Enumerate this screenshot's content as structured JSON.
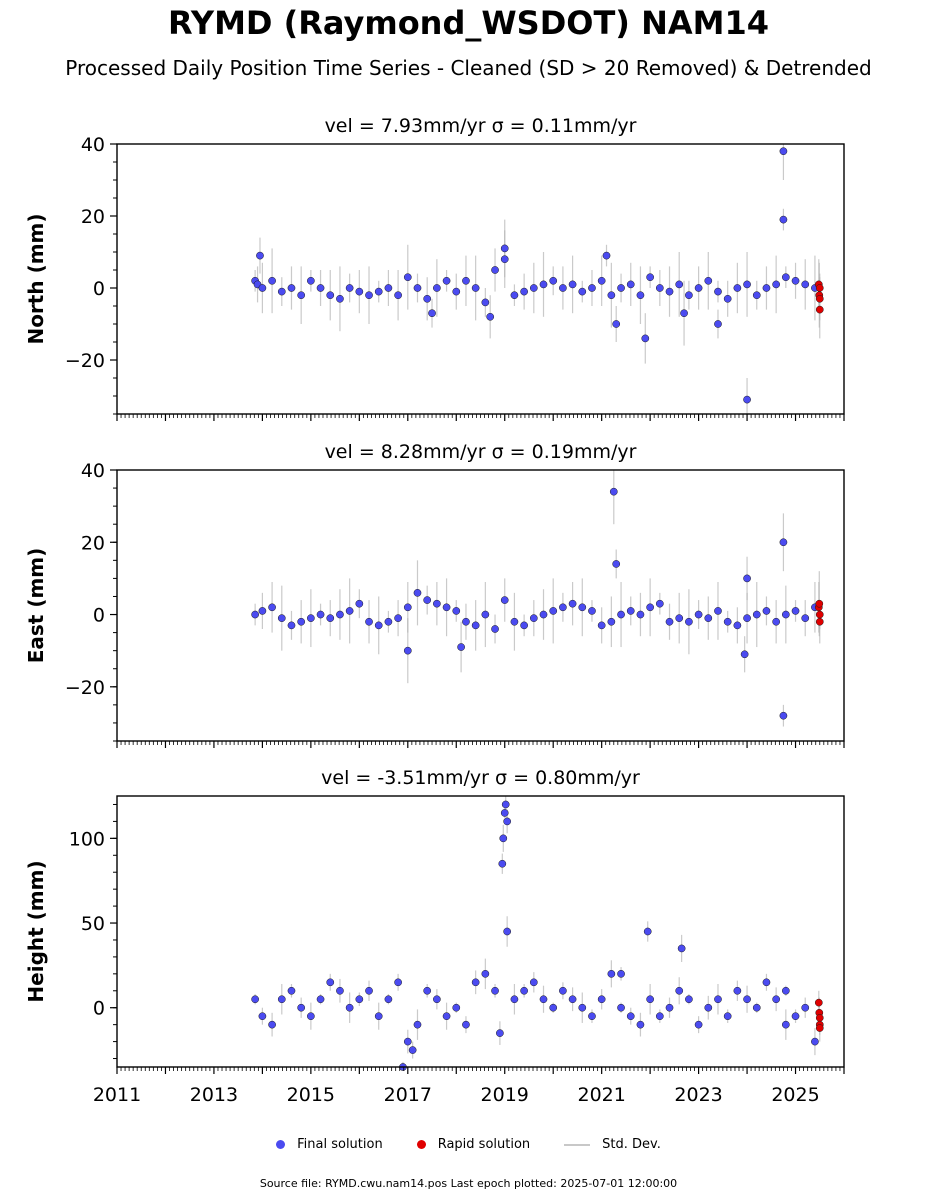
{
  "title": "RYMD (Raymond_WSDOT) NAM14",
  "subtitle": "Processed Daily Position Time Series - Cleaned (SD > 20 Removed) & Detrended",
  "legend": {
    "final": "Final solution",
    "rapid": "Rapid solution",
    "std": "Std. Dev."
  },
  "footer": "Source file: RYMD.cwu.nam14.pos  Last epoch plotted: 2025-07-01 12:00:00",
  "colors": {
    "final": "#4b4bf0",
    "rapid": "#e00000",
    "std": "#b4b4b4"
  },
  "chart_data": [
    {
      "type": "scatter",
      "title": "vel = 7.93mm/yr   σ = 0.11mm/yr",
      "ylabel": "North (mm)",
      "xlim": [
        2011,
        2026
      ],
      "ylim": [
        -35,
        40
      ],
      "yticks": [
        -20,
        0,
        20,
        40
      ],
      "series": [
        {
          "name": "Final solution",
          "x": [
            2013.85,
            2013.9,
            2014.0,
            2014.2,
            2014.4,
            2014.6,
            2014.8,
            2015.0,
            2015.2,
            2015.4,
            2015.6,
            2015.8,
            2016.0,
            2016.2,
            2016.4,
            2016.6,
            2016.8,
            2017.0,
            2017.2,
            2017.4,
            2017.6,
            2017.8,
            2018.0,
            2018.2,
            2018.4,
            2018.6,
            2018.8,
            2019.0,
            2019.2,
            2019.4,
            2019.6,
            2019.8,
            2020.0,
            2020.2,
            2020.4,
            2020.6,
            2020.8,
            2021.0,
            2021.2,
            2021.4,
            2021.6,
            2021.8,
            2022.0,
            2022.2,
            2022.4,
            2022.6,
            2022.8,
            2023.0,
            2023.2,
            2023.4,
            2023.6,
            2023.8,
            2024.0,
            2024.2,
            2024.4,
            2024.6,
            2024.8,
            2025.0,
            2025.2,
            2025.4,
            2017.5,
            2018.7,
            2019.0,
            2021.1,
            2021.3,
            2021.9,
            2022.7,
            2023.4,
            2024.0,
            2024.75,
            2024.75,
            2013.95
          ],
          "y": [
            2,
            1,
            0,
            2,
            -1,
            0,
            -2,
            2,
            0,
            -2,
            -3,
            0,
            -1,
            -2,
            -1,
            0,
            -2,
            3,
            0,
            -3,
            0,
            2,
            -1,
            2,
            0,
            -4,
            5,
            8,
            -2,
            -1,
            0,
            1,
            2,
            0,
            1,
            -1,
            0,
            2,
            -2,
            0,
            1,
            -2,
            3,
            0,
            -1,
            1,
            -2,
            0,
            2,
            -1,
            -3,
            0,
            1,
            -2,
            0,
            1,
            3,
            2,
            1,
            0,
            -7,
            -8,
            11,
            9,
            -10,
            -14,
            -7,
            -10,
            -31,
            38,
            19,
            9
          ]
        },
        {
          "name": "Rapid solution",
          "x": [
            2025.48,
            2025.49,
            2025.5,
            2025.5,
            2025.5
          ],
          "y": [
            1,
            -2,
            0,
            -3,
            -6
          ]
        }
      ]
    },
    {
      "type": "scatter",
      "title": "vel = 8.28mm/yr   σ = 0.19mm/yr",
      "ylabel": "East (mm)",
      "xlim": [
        2011,
        2026
      ],
      "ylim": [
        -35,
        40
      ],
      "yticks": [
        -20,
        0,
        20,
        40
      ],
      "series": [
        {
          "name": "Final solution",
          "x": [
            2013.85,
            2014.0,
            2014.2,
            2014.4,
            2014.6,
            2014.8,
            2015.0,
            2015.2,
            2015.4,
            2015.6,
            2015.8,
            2016.0,
            2016.2,
            2016.4,
            2016.6,
            2016.8,
            2017.0,
            2017.2,
            2017.4,
            2017.6,
            2017.8,
            2018.0,
            2018.2,
            2018.4,
            2018.6,
            2018.8,
            2019.0,
            2019.2,
            2019.4,
            2019.6,
            2019.8,
            2020.0,
            2020.2,
            2020.4,
            2020.6,
            2020.8,
            2021.0,
            2021.2,
            2021.4,
            2021.6,
            2021.8,
            2022.0,
            2022.2,
            2022.4,
            2022.6,
            2022.8,
            2023.0,
            2023.2,
            2023.4,
            2023.6,
            2023.8,
            2024.0,
            2024.2,
            2024.4,
            2024.6,
            2024.8,
            2025.0,
            2025.2,
            2025.4,
            2021.25,
            2021.3,
            2024.0,
            2024.75,
            2024.75,
            2023.95,
            2018.1,
            2017.0
          ],
          "y": [
            0,
            1,
            2,
            -1,
            -3,
            -2,
            -1,
            0,
            -1,
            0,
            1,
            3,
            -2,
            -3,
            -2,
            -1,
            2,
            6,
            4,
            3,
            2,
            1,
            -2,
            -3,
            0,
            -4,
            4,
            -2,
            -3,
            -1,
            0,
            1,
            2,
            3,
            2,
            1,
            -3,
            -2,
            0,
            1,
            0,
            2,
            3,
            -2,
            -1,
            -2,
            0,
            -1,
            1,
            -2,
            -3,
            -1,
            0,
            1,
            -2,
            0,
            1,
            -1,
            2,
            34,
            14,
            10,
            20,
            -28,
            -11,
            -9,
            -10
          ]
        },
        {
          "name": "Rapid solution",
          "x": [
            2025.48,
            2025.49,
            2025.5,
            2025.5
          ],
          "y": [
            2,
            3,
            0,
            -2
          ]
        }
      ]
    },
    {
      "type": "scatter",
      "title": "vel = -3.51mm/yr   σ = 0.80mm/yr",
      "ylabel": "Height (mm)",
      "xlim": [
        2011,
        2026
      ],
      "ylim": [
        -35,
        125
      ],
      "yticks": [
        0,
        50,
        100
      ],
      "xticks": [
        "2011",
        "2013",
        "2015",
        "2017",
        "2019",
        "2021",
        "2023",
        "2025"
      ],
      "series": [
        {
          "name": "Final solution",
          "x": [
            2013.85,
            2014.0,
            2014.2,
            2014.4,
            2014.6,
            2014.8,
            2015.0,
            2015.2,
            2015.4,
            2015.6,
            2015.8,
            2016.0,
            2016.2,
            2016.4,
            2016.6,
            2016.8,
            2017.0,
            2017.2,
            2017.4,
            2017.6,
            2017.8,
            2018.0,
            2018.2,
            2018.4,
            2018.6,
            2018.8,
            2018.95,
            2018.97,
            2019.0,
            2019.02,
            2019.05,
            2019.2,
            2019.4,
            2019.6,
            2019.8,
            2020.0,
            2020.2,
            2020.4,
            2020.6,
            2020.8,
            2021.0,
            2021.2,
            2021.4,
            2021.6,
            2021.8,
            2022.0,
            2022.2,
            2022.4,
            2022.6,
            2022.8,
            2023.0,
            2023.2,
            2023.4,
            2023.6,
            2023.8,
            2024.0,
            2024.2,
            2024.4,
            2024.6,
            2024.8,
            2025.0,
            2025.2,
            2025.4,
            2016.9,
            2017.1,
            2018.9,
            2019.05,
            2021.4,
            2021.95,
            2022.65,
            2024.8
          ],
          "y": [
            5,
            -5,
            -10,
            5,
            10,
            0,
            -5,
            5,
            15,
            10,
            0,
            5,
            10,
            -5,
            5,
            15,
            -20,
            -10,
            10,
            5,
            -5,
            0,
            -10,
            15,
            20,
            10,
            85,
            100,
            115,
            120,
            110,
            5,
            10,
            15,
            5,
            0,
            10,
            5,
            0,
            -5,
            5,
            20,
            0,
            -5,
            -10,
            5,
            -5,
            0,
            10,
            5,
            -10,
            0,
            5,
            -5,
            10,
            5,
            0,
            15,
            5,
            -10,
            -5,
            0,
            -20,
            -35,
            -25,
            -15,
            45,
            20,
            45,
            35,
            10
          ]
        },
        {
          "name": "Rapid solution",
          "x": [
            2025.48,
            2025.49,
            2025.5,
            2025.5,
            2025.5
          ],
          "y": [
            3,
            -3,
            -6,
            -10,
            -12
          ]
        }
      ]
    }
  ]
}
